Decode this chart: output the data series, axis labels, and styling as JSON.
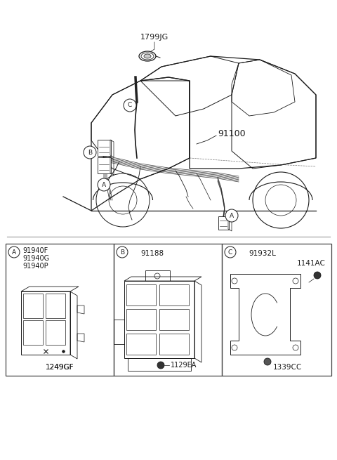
{
  "bg_color": "#ffffff",
  "line_color": "#1a1a1a",
  "border_color": "#555555",
  "label_color": "#1a1a1a",
  "main_label": "91100",
  "top_label": "1799JG",
  "panel_A_parts": [
    "91940F",
    "91940G",
    "91940P"
  ],
  "panel_A_sub": "1249GF",
  "panel_B_part": "91188",
  "panel_B_sub": "1129EA",
  "panel_C_part1": "91932L",
  "panel_C_part2": "1141AC",
  "panel_C_sub": "1339CC"
}
